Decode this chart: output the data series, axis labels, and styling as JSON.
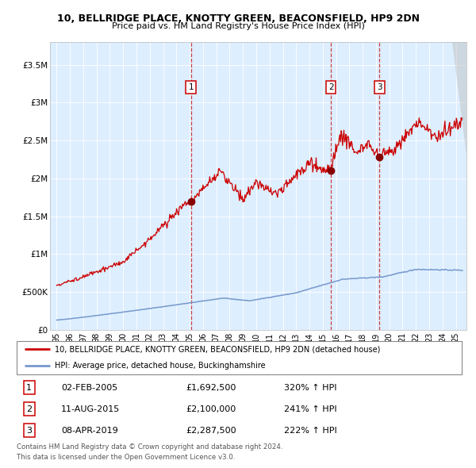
{
  "title": "10, BELLRIDGE PLACE, KNOTTY GREEN, BEACONSFIELD, HP9 2DN",
  "subtitle": "Price paid vs. HM Land Registry's House Price Index (HPI)",
  "bg_color": "#ddeeff",
  "hpi_color": "#7799cc",
  "price_color": "#cc0000",
  "sale_marker_color": "#880000",
  "dashed_line_color": "#cc2222",
  "sale_events": [
    {
      "date_num": 2005.09,
      "price": 1692500,
      "label": "1",
      "date_str": "02-FEB-2005",
      "pct": "320%"
    },
    {
      "date_num": 2015.61,
      "price": 2100000,
      "label": "2",
      "date_str": "11-AUG-2015",
      "pct": "241%"
    },
    {
      "date_num": 2019.27,
      "price": 2287500,
      "label": "3",
      "date_str": "08-APR-2019",
      "pct": "222%"
    }
  ],
  "ylim": [
    0,
    3800000
  ],
  "xlim": [
    1994.5,
    2025.8
  ],
  "yticks": [
    0,
    500000,
    1000000,
    1500000,
    2000000,
    2500000,
    3000000,
    3500000
  ],
  "ytick_labels": [
    "£0",
    "£500K",
    "£1M",
    "£1.5M",
    "£2M",
    "£2.5M",
    "£3M",
    "£3.5M"
  ],
  "xtick_years": [
    1995,
    1996,
    1997,
    1998,
    1999,
    2000,
    2001,
    2002,
    2003,
    2004,
    2005,
    2006,
    2007,
    2008,
    2009,
    2010,
    2011,
    2012,
    2013,
    2014,
    2015,
    2016,
    2017,
    2018,
    2019,
    2020,
    2021,
    2022,
    2023,
    2024,
    2025
  ],
  "legend_line1": "10, BELLRIDGE PLACE, KNOTTY GREEN, BEACONSFIELD, HP9 2DN (detached house)",
  "legend_line2": "HPI: Average price, detached house, Buckinghamshire",
  "footer1": "Contains HM Land Registry data © Crown copyright and database right 2024.",
  "footer2": "This data is licensed under the Open Government Licence v3.0."
}
